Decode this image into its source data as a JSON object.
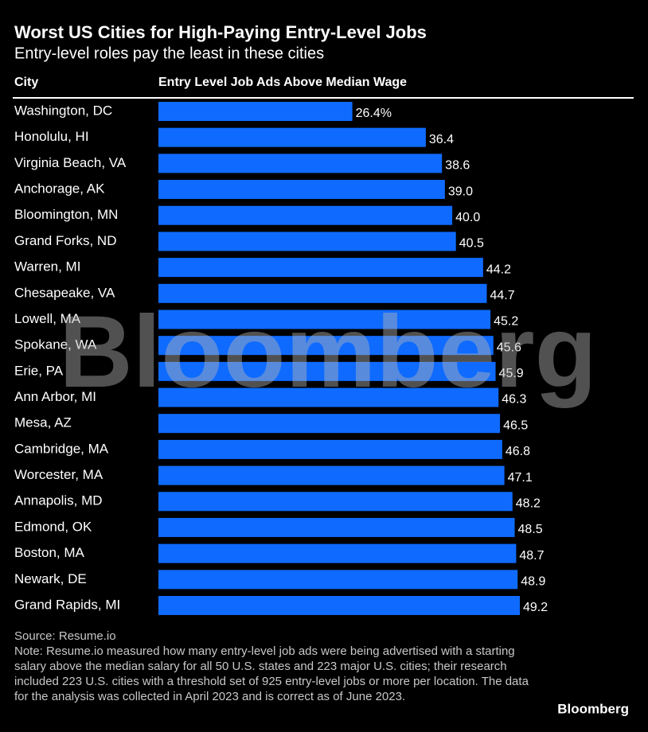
{
  "chart_data": {
    "type": "bar",
    "orientation": "horizontal",
    "title": "Worst US Cities for High-Paying Entry-Level Jobs",
    "subtitle": "Entry-level roles pay the least in these cities",
    "column_headers": [
      "City",
      "Entry Level Job Ads Above Median Wage"
    ],
    "categories": [
      "Washington, DC",
      "Honolulu, HI",
      "Virginia Beach, VA",
      "Anchorage, AK",
      "Bloomington, MN",
      "Grand Forks, ND",
      "Warren, MI",
      "Chesapeake, VA",
      "Lowell, MA",
      "Spokane, WA",
      "Erie, PA",
      "Ann Arbor, MI",
      "Mesa, AZ",
      "Cambridge, MA",
      "Worcester, MA",
      "Annapolis, MD",
      "Edmond, OK",
      "Boston, MA",
      "Newark, DE",
      "Grand Rapids, MI"
    ],
    "values": [
      26.4,
      36.4,
      38.6,
      39.0,
      40.0,
      40.5,
      44.2,
      44.7,
      45.2,
      45.6,
      45.9,
      46.3,
      46.5,
      46.8,
      47.1,
      48.2,
      48.5,
      48.7,
      48.9,
      49.2
    ],
    "value_labels": [
      "26.4%",
      "36.4",
      "38.6",
      "39.0",
      "40.0",
      "40.5",
      "44.2",
      "44.7",
      "45.2",
      "45.6",
      "45.9",
      "46.3",
      "46.5",
      "46.8",
      "47.1",
      "48.2",
      "48.5",
      "48.7",
      "48.9",
      "49.2"
    ],
    "color": "#0f6bff"
  },
  "watermark": "Bloomberg",
  "source": "Source: Resume.io",
  "note": "Note: Resume.io measured how many entry-level job ads were being advertised with a starting salary above the median salary for all 50 U.S. states and 223 major U.S. cities; their research included 223 U.S. cities with a threshold set of 925 entry-level jobs or more per location. The data for the analysis was collected in April 2023 and is correct as of June 2023.",
  "logo": "Bloomberg"
}
